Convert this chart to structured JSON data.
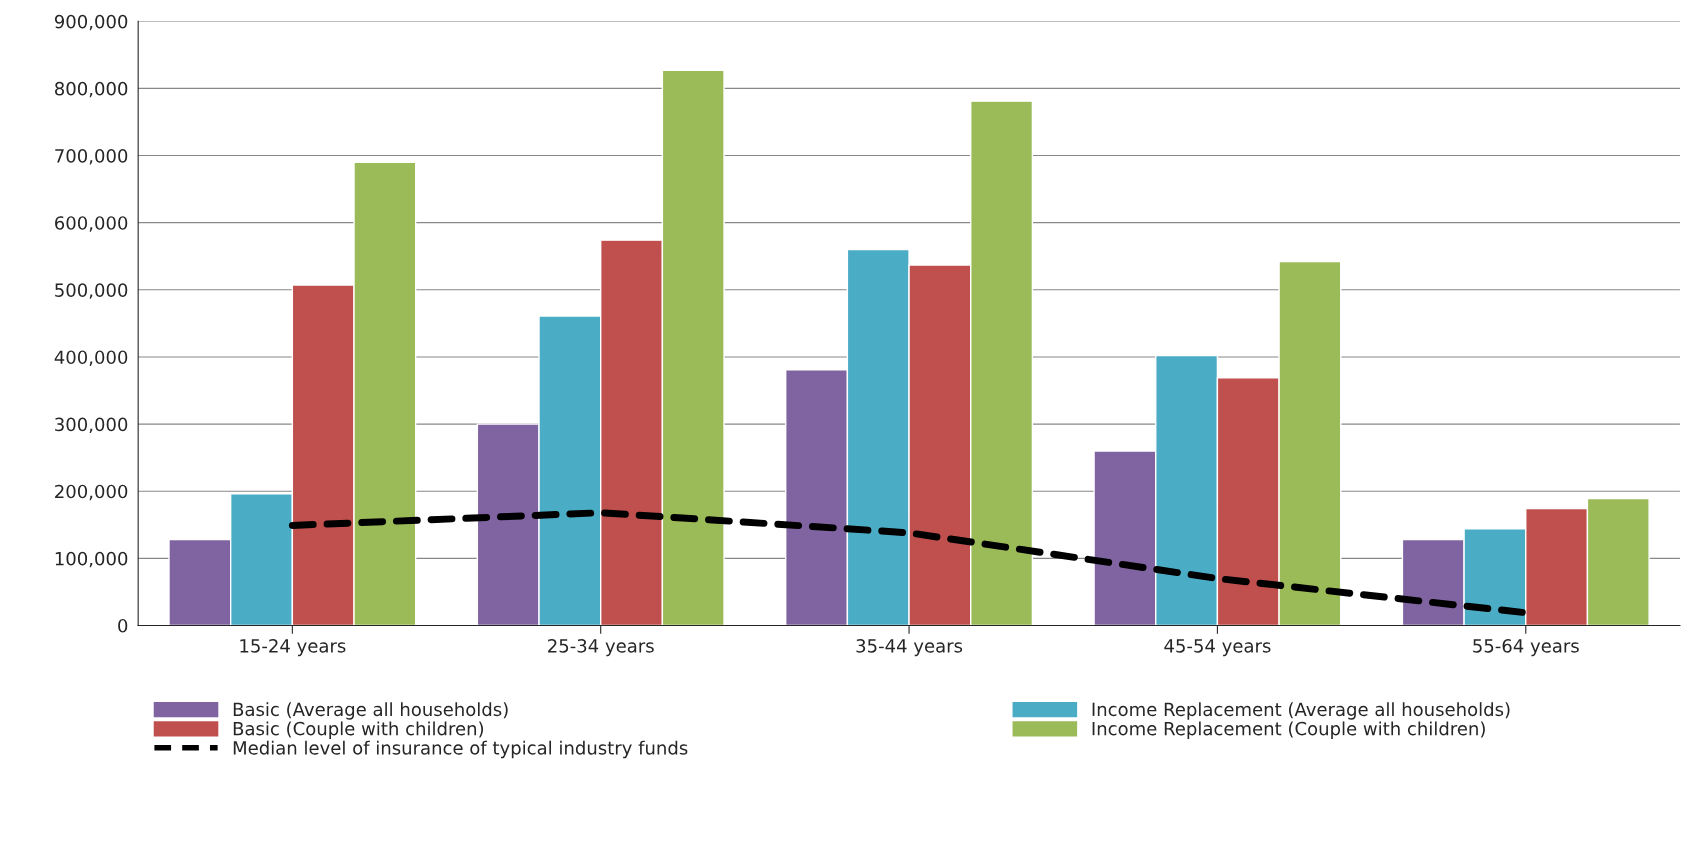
{
  "chart_data": {
    "type": "bar",
    "categories": [
      "15-24 years",
      "25-34 years",
      "35-44 years",
      "45-54 years",
      "55-64 years"
    ],
    "series": [
      {
        "name": "Basic (Average all households)",
        "color": "#8064a2",
        "values": [
          128000,
          300000,
          381000,
          260000,
          128000
        ]
      },
      {
        "name": "Income Replacement (Average all households)",
        "color": "#4bacc6",
        "values": [
          196000,
          461000,
          560000,
          402000,
          144000
        ]
      },
      {
        "name": "Basic (Couple with children)",
        "color": "#c0504d",
        "values": [
          507000,
          574000,
          537000,
          369000,
          174000
        ]
      },
      {
        "name": "Income Replacement (Couple with children)",
        "color": "#9bbb59",
        "values": [
          690000,
          827000,
          781000,
          542000,
          189000
        ]
      },
      {
        "name": "Median level of insurance of typical industry funds",
        "type": "line",
        "color": "#000000",
        "line_style": "dashed",
        "values": [
          149000,
          168000,
          138000,
          70000,
          19000
        ]
      }
    ],
    "ylim": [
      0,
      900000
    ],
    "yticks": [
      {
        "value": 0,
        "label": "0"
      },
      {
        "value": 100000,
        "label": "100,000"
      },
      {
        "value": 200000,
        "label": "200,000"
      },
      {
        "value": 300000,
        "label": "300,000"
      },
      {
        "value": 400000,
        "label": "400,000"
      },
      {
        "value": 500000,
        "label": "500,000"
      },
      {
        "value": 600000,
        "label": "600,000"
      },
      {
        "value": 700000,
        "label": "700,000"
      },
      {
        "value": 800000,
        "label": "800,000"
      },
      {
        "value": 900000,
        "label": "900,000"
      }
    ],
    "grid": "y",
    "legend": "bottom"
  }
}
